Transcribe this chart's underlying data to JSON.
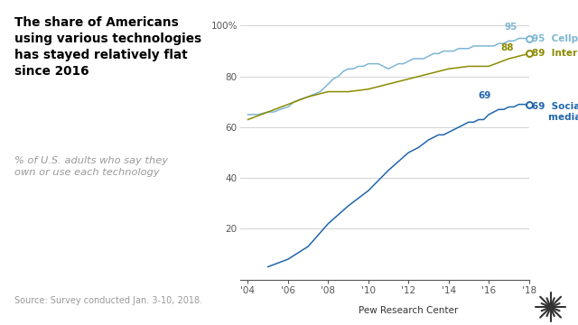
{
  "title": "The share of Americans\nusing various technologies\nhas stayed relatively flat\nsince 2016",
  "subtitle": "% of U.S. adults who say they\nown or use each technology",
  "source": "Source: Survey conducted Jan. 3-10, 2018.",
  "footer": "Pew Research Center",
  "title_color": "#000000",
  "subtitle_color": "#999999",
  "source_color": "#999999",
  "background_color": "#ffffff",
  "cellphone_color": "#7eb6d4",
  "internet_color": "#8b8b00",
  "social_color": "#2166ac",
  "cellphone_label": "Cellphone",
  "internet_label": "Internet",
  "social_label": "Social\nmedia",
  "ylim": [
    0,
    105
  ],
  "ytick_vals": [
    20,
    40,
    60,
    80,
    100
  ],
  "ytick_labels": [
    "20",
    "40",
    "60",
    "80",
    "100%"
  ],
  "xtick_positions": [
    2004,
    2006,
    2008,
    2010,
    2012,
    2014,
    2016,
    2018
  ],
  "xtick_labels": [
    "'04",
    "'06",
    "'08",
    "'10",
    "'12",
    "'14",
    "'16",
    "'18"
  ],
  "cellphone_data": {
    "years": [
      2004,
      2004.5,
      2005,
      2005.3,
      2005.6,
      2006,
      2006.3,
      2006.6,
      2007,
      2007.3,
      2007.6,
      2008,
      2008.25,
      2008.5,
      2008.75,
      2009,
      2009.25,
      2009.5,
      2009.75,
      2010,
      2010.25,
      2010.5,
      2010.75,
      2011,
      2011.25,
      2011.5,
      2011.75,
      2012,
      2012.25,
      2012.5,
      2012.75,
      2013,
      2013.25,
      2013.5,
      2013.75,
      2014,
      2014.25,
      2014.5,
      2014.75,
      2015,
      2015.25,
      2015.5,
      2015.75,
      2016,
      2016.25,
      2016.5,
      2016.75,
      2017,
      2017.25,
      2017.5,
      2017.75,
      2018
    ],
    "values": [
      65,
      65,
      66,
      66,
      67,
      68,
      70,
      71,
      72,
      73,
      74,
      77,
      79,
      80,
      82,
      83,
      83,
      84,
      84,
      85,
      85,
      85,
      84,
      83,
      84,
      85,
      85,
      86,
      87,
      87,
      87,
      88,
      89,
      89,
      90,
      90,
      90,
      91,
      91,
      91,
      92,
      92,
      92,
      92,
      92,
      93,
      93,
      94,
      94,
      95,
      95,
      95
    ]
  },
  "internet_data": {
    "years": [
      2004,
      2005,
      2006,
      2007,
      2008,
      2009,
      2010,
      2011,
      2012,
      2013,
      2014,
      2015,
      2016,
      2017,
      2017.5,
      2018
    ],
    "values": [
      63,
      66,
      69,
      72,
      74,
      74,
      75,
      77,
      79,
      81,
      83,
      84,
      84,
      87,
      88,
      89
    ]
  },
  "social_data": {
    "years": [
      2005,
      2006,
      2007,
      2008,
      2009,
      2010,
      2011,
      2012,
      2012.5,
      2013,
      2013.25,
      2013.5,
      2013.75,
      2014,
      2014.25,
      2014.5,
      2014.75,
      2015,
      2015.25,
      2015.5,
      2015.75,
      2016,
      2016.25,
      2016.5,
      2016.75,
      2017,
      2017.25,
      2017.5,
      2017.75,
      2018
    ],
    "values": [
      5,
      8,
      13,
      22,
      29,
      35,
      43,
      50,
      52,
      55,
      56,
      57,
      57,
      58,
      59,
      60,
      61,
      62,
      62,
      63,
      63,
      65,
      66,
      67,
      67,
      68,
      68,
      69,
      69,
      69
    ]
  }
}
